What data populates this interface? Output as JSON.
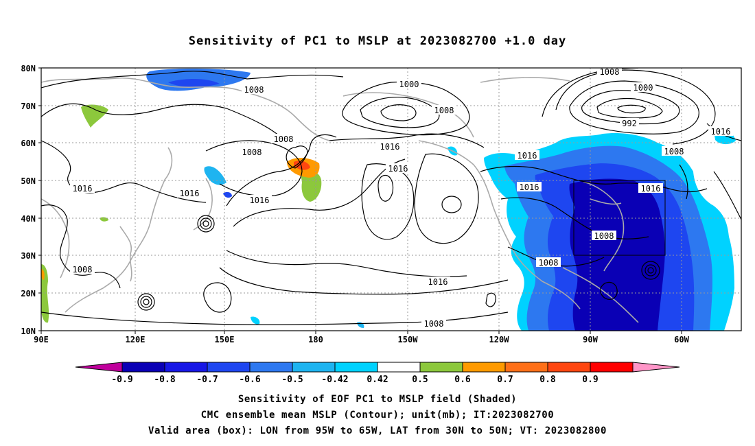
{
  "title": "Sensitivity of PC1 to MSLP at 2023082700 +1.0 day",
  "lat_labels": [
    "80N",
    "70N",
    "60N",
    "50N",
    "40N",
    "30N",
    "20N",
    "10N"
  ],
  "lon_labels": [
    "90E",
    "120E",
    "150E",
    "180",
    "150W",
    "120W",
    "90W",
    "60W"
  ],
  "contour_labels": [
    "1008",
    "1008",
    "1000",
    "1008",
    "1008",
    "1000",
    "992",
    "1016",
    "1008",
    "1008",
    "1016",
    "1016",
    "1016",
    "1016",
    "1016",
    "1016",
    "1008",
    "1008",
    "1016",
    "1008",
    "1016",
    "1008",
    "1016"
  ],
  "colorbar": {
    "labels": [
      "-0.9",
      "-0.8",
      "-0.7",
      "-0.6",
      "-0.5",
      "-0.42",
      "0.42",
      "0.5",
      "0.6",
      "0.7",
      "0.8",
      "0.9"
    ],
    "colors": [
      "#c0009c",
      "#0a00b5",
      "#1717e6",
      "#1e46f0",
      "#2d78f0",
      "#1eb4f0",
      "#00d2ff",
      "#ffffff",
      "#8cc83c",
      "#ff9a00",
      "#ff7018",
      "#ff4610",
      "#ff0000",
      "#ff96c8"
    ]
  },
  "captions": {
    "line1": "Sensitivity of EOF PC1 to MSLP field (Shaded)",
    "line2": "CMC ensemble mean MSLP (Contour); unit(mb); IT:2023082700",
    "line3": "Valid area (box): LON from 95W to 65W, LAT from 30N to 50N; VT: 2023082800"
  }
}
